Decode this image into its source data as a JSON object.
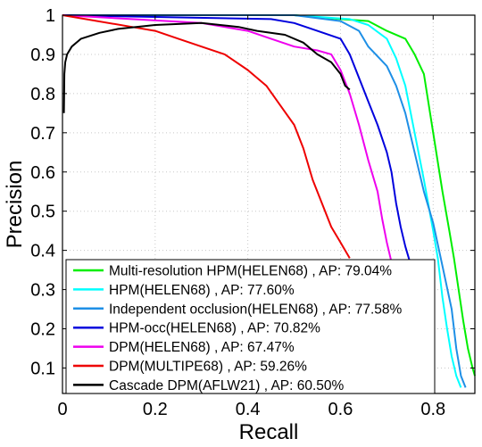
{
  "chart_data": {
    "type": "line",
    "title": "",
    "xlabel": "Recall",
    "ylabel": "Precision",
    "xlim": [
      0,
      0.89
    ],
    "ylim": [
      0.035,
      1.0
    ],
    "xticks": [
      0,
      0.2,
      0.4,
      0.6,
      0.8
    ],
    "xtick_labels": [
      "0",
      "0.2",
      "0.4",
      "0.6",
      "0.8"
    ],
    "yticks": [
      0.1,
      0.2,
      0.3,
      0.4,
      0.5,
      0.6,
      0.7,
      0.8,
      0.9,
      1.0
    ],
    "ytick_labels": [
      "0.1",
      "0.2",
      "0.3",
      "0.4",
      "0.5",
      "0.6",
      "0.7",
      "0.8",
      "0.9",
      "1"
    ],
    "grid": true,
    "legend_position": "bottom-right",
    "series": [
      {
        "name": "Multi-resolution HPM(HELEN68) , AP: 79.04%",
        "color": "#00ee00",
        "points": [
          [
            0.0,
            1.0
          ],
          [
            0.5,
            1.0
          ],
          [
            0.6,
            0.99
          ],
          [
            0.66,
            0.985
          ],
          [
            0.7,
            0.96
          ],
          [
            0.74,
            0.94
          ],
          [
            0.76,
            0.9
          ],
          [
            0.78,
            0.85
          ],
          [
            0.8,
            0.7
          ],
          [
            0.82,
            0.55
          ],
          [
            0.835,
            0.45
          ],
          [
            0.845,
            0.38
          ],
          [
            0.855,
            0.3
          ],
          [
            0.865,
            0.22
          ],
          [
            0.875,
            0.15
          ],
          [
            0.885,
            0.1
          ],
          [
            0.89,
            0.08
          ]
        ]
      },
      {
        "name": "HPM(HELEN68) , AP: 77.60%",
        "color": "#00ffff",
        "points": [
          [
            0.0,
            1.0
          ],
          [
            0.5,
            1.0
          ],
          [
            0.62,
            0.99
          ],
          [
            0.66,
            0.975
          ],
          [
            0.7,
            0.94
          ],
          [
            0.72,
            0.89
          ],
          [
            0.74,
            0.82
          ],
          [
            0.76,
            0.7
          ],
          [
            0.78,
            0.58
          ],
          [
            0.8,
            0.45
          ],
          [
            0.81,
            0.38
          ],
          [
            0.82,
            0.28
          ],
          [
            0.83,
            0.2
          ],
          [
            0.84,
            0.13
          ],
          [
            0.85,
            0.08
          ],
          [
            0.86,
            0.05
          ]
        ]
      },
      {
        "name": "Independent occlusion(HELEN68) , AP: 77.58%",
        "color": "#1e8fe6",
        "points": [
          [
            0.0,
            1.0
          ],
          [
            0.5,
            1.0
          ],
          [
            0.6,
            0.985
          ],
          [
            0.64,
            0.96
          ],
          [
            0.66,
            0.92
          ],
          [
            0.7,
            0.87
          ],
          [
            0.72,
            0.82
          ],
          [
            0.74,
            0.75
          ],
          [
            0.76,
            0.65
          ],
          [
            0.78,
            0.55
          ],
          [
            0.8,
            0.47
          ],
          [
            0.82,
            0.36
          ],
          [
            0.84,
            0.25
          ],
          [
            0.85,
            0.15
          ],
          [
            0.86,
            0.08
          ],
          [
            0.87,
            0.05
          ]
        ]
      },
      {
        "name": "HPM-occ(HELEN68) , AP: 70.82%",
        "color": "#0000dd",
        "points": [
          [
            0.0,
            1.0
          ],
          [
            0.45,
            0.99
          ],
          [
            0.5,
            0.98
          ],
          [
            0.55,
            0.96
          ],
          [
            0.6,
            0.94
          ],
          [
            0.62,
            0.9
          ],
          [
            0.64,
            0.84
          ],
          [
            0.66,
            0.78
          ],
          [
            0.68,
            0.72
          ],
          [
            0.7,
            0.65
          ],
          [
            0.71,
            0.6
          ],
          [
            0.72,
            0.52
          ],
          [
            0.73,
            0.46
          ],
          [
            0.74,
            0.41
          ],
          [
            0.75,
            0.37
          ],
          [
            0.76,
            0.34
          ]
        ]
      },
      {
        "name": "DPM(HELEN68) , AP: 67.47%",
        "color": "#ee00ee",
        "points": [
          [
            0.0,
            1.0
          ],
          [
            0.3,
            0.98
          ],
          [
            0.4,
            0.96
          ],
          [
            0.45,
            0.94
          ],
          [
            0.5,
            0.92
          ],
          [
            0.55,
            0.91
          ],
          [
            0.58,
            0.9
          ],
          [
            0.6,
            0.86
          ],
          [
            0.62,
            0.8
          ],
          [
            0.64,
            0.72
          ],
          [
            0.66,
            0.63
          ],
          [
            0.68,
            0.55
          ],
          [
            0.69,
            0.48
          ],
          [
            0.7,
            0.42
          ],
          [
            0.71,
            0.37
          ]
        ]
      },
      {
        "name": "DPM(MULTIPE68) , AP: 59.26%",
        "color": "#ee0000",
        "points": [
          [
            0.0,
            1.0
          ],
          [
            0.15,
            0.97
          ],
          [
            0.2,
            0.96
          ],
          [
            0.25,
            0.94
          ],
          [
            0.3,
            0.92
          ],
          [
            0.35,
            0.9
          ],
          [
            0.4,
            0.86
          ],
          [
            0.44,
            0.82
          ],
          [
            0.47,
            0.77
          ],
          [
            0.5,
            0.72
          ],
          [
            0.52,
            0.66
          ],
          [
            0.54,
            0.58
          ],
          [
            0.56,
            0.52
          ],
          [
            0.58,
            0.46
          ],
          [
            0.6,
            0.42
          ],
          [
            0.62,
            0.38
          ]
        ]
      },
      {
        "name": "Cascade DPM(AFLW21) , AP: 60.50%",
        "color": "#000000",
        "points": [
          [
            0.003,
            0.75
          ],
          [
            0.004,
            0.85
          ],
          [
            0.006,
            0.88
          ],
          [
            0.01,
            0.9
          ],
          [
            0.02,
            0.92
          ],
          [
            0.04,
            0.94
          ],
          [
            0.08,
            0.955
          ],
          [
            0.12,
            0.965
          ],
          [
            0.2,
            0.975
          ],
          [
            0.3,
            0.98
          ],
          [
            0.38,
            0.97
          ],
          [
            0.42,
            0.96
          ],
          [
            0.48,
            0.95
          ],
          [
            0.52,
            0.93
          ],
          [
            0.55,
            0.9
          ],
          [
            0.58,
            0.88
          ],
          [
            0.6,
            0.85
          ],
          [
            0.61,
            0.82
          ],
          [
            0.62,
            0.81
          ]
        ]
      }
    ]
  }
}
